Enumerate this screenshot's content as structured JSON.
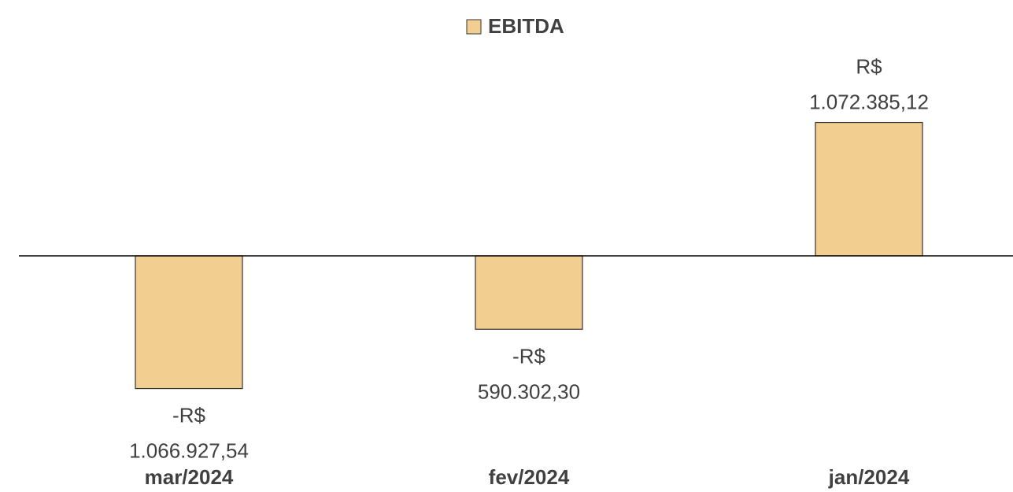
{
  "chart_data": {
    "type": "bar",
    "categories": [
      "mar/2024",
      "fev/2024",
      "jan/2024"
    ],
    "series": [
      {
        "name": "EBITDA",
        "color": "#f2cf91",
        "values": [
          -1066927.54,
          -590302.3,
          1072385.12
        ],
        "value_labels": [
          "-R$ 1.066.927,54",
          "-R$ 590.302,30",
          "R$ 1.072.385,12"
        ]
      }
    ],
    "ylim": [
      -1500000,
      1500000
    ],
    "legend": "top"
  }
}
